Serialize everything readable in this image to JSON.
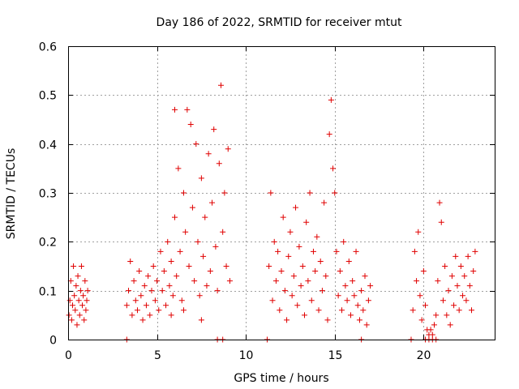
{
  "chart_data": {
    "type": "scatter",
    "title": "Day 186 of 2022, SRMTID for receiver mtut",
    "xlabel": "GPS time / hours",
    "ylabel": "SRMTID / TECUs",
    "xlim": [
      0,
      24
    ],
    "ylim": [
      0,
      0.6
    ],
    "xticks": [
      0,
      5,
      10,
      15,
      20
    ],
    "xtick_labels": [
      "0",
      "5",
      "10",
      "15",
      "20"
    ],
    "yticks": [
      0,
      0.1,
      0.2,
      0.3,
      0.4,
      0.5,
      0.6
    ],
    "ytick_labels": [
      "0",
      "0.1",
      "0.2",
      "0.3",
      "0.4",
      "0.5",
      "0.6"
    ],
    "grid": true,
    "marker": "+",
    "color": "#e00000",
    "series": [
      {
        "name": "SRMTID",
        "points": [
          [
            0.05,
            0.05
          ],
          [
            0.1,
            0.08
          ],
          [
            0.15,
            0.12
          ],
          [
            0.2,
            0.04
          ],
          [
            0.25,
            0.07
          ],
          [
            0.3,
            0.15
          ],
          [
            0.35,
            0.09
          ],
          [
            0.4,
            0.06
          ],
          [
            0.45,
            0.11
          ],
          [
            0.5,
            0.03
          ],
          [
            0.55,
            0.13
          ],
          [
            0.6,
            0.08
          ],
          [
            0.65,
            0.05
          ],
          [
            0.7,
            0.1
          ],
          [
            0.75,
            0.15
          ],
          [
            0.8,
            0.07
          ],
          [
            0.85,
            0.09
          ],
          [
            0.9,
            0.04
          ],
          [
            0.95,
            0.12
          ],
          [
            1.0,
            0.06
          ],
          [
            1.05,
            0.08
          ],
          [
            1.1,
            0.1
          ],
          [
            3.3,
            0.0
          ],
          [
            3.3,
            0.07
          ],
          [
            3.4,
            0.1
          ],
          [
            3.5,
            0.16
          ],
          [
            3.6,
            0.05
          ],
          [
            3.7,
            0.12
          ],
          [
            3.8,
            0.08
          ],
          [
            3.9,
            0.06
          ],
          [
            4.0,
            0.14
          ],
          [
            4.1,
            0.09
          ],
          [
            4.2,
            0.04
          ],
          [
            4.3,
            0.11
          ],
          [
            4.4,
            0.07
          ],
          [
            4.5,
            0.13
          ],
          [
            4.6,
            0.05
          ],
          [
            4.7,
            0.1
          ],
          [
            4.8,
            0.15
          ],
          [
            4.9,
            0.08
          ],
          [
            5.0,
            0.12
          ],
          [
            5.1,
            0.06
          ],
          [
            5.2,
            0.18
          ],
          [
            5.3,
            0.1
          ],
          [
            5.4,
            0.14
          ],
          [
            5.5,
            0.07
          ],
          [
            5.6,
            0.2
          ],
          [
            5.7,
            0.11
          ],
          [
            5.8,
            0.16
          ],
          [
            5.9,
            0.09
          ],
          [
            6.0,
            0.25
          ],
          [
            6.1,
            0.13
          ],
          [
            6.2,
            0.35
          ],
          [
            6.3,
            0.18
          ],
          [
            6.4,
            0.08
          ],
          [
            6.5,
            0.3
          ],
          [
            6.6,
            0.22
          ],
          [
            6.7,
            0.47
          ],
          [
            6.8,
            0.15
          ],
          [
            6.9,
            0.44
          ],
          [
            7.0,
            0.27
          ],
          [
            7.1,
            0.12
          ],
          [
            7.2,
            0.4
          ],
          [
            7.3,
            0.2
          ],
          [
            7.4,
            0.09
          ],
          [
            7.5,
            0.33
          ],
          [
            7.6,
            0.17
          ],
          [
            7.7,
            0.25
          ],
          [
            7.8,
            0.11
          ],
          [
            7.9,
            0.38
          ],
          [
            8.0,
            0.14
          ],
          [
            8.1,
            0.28
          ],
          [
            8.2,
            0.43
          ],
          [
            8.3,
            0.19
          ],
          [
            8.4,
            0.1
          ],
          [
            8.5,
            0.36
          ],
          [
            8.6,
            0.52
          ],
          [
            8.7,
            0.22
          ],
          [
            8.8,
            0.3
          ],
          [
            8.9,
            0.15
          ],
          [
            9.0,
            0.39
          ],
          [
            9.1,
            0.12
          ],
          [
            6.0,
            0.47
          ],
          [
            5.8,
            0.05
          ],
          [
            6.5,
            0.06
          ],
          [
            7.5,
            0.04
          ],
          [
            8.4,
            0.0
          ],
          [
            8.7,
            0.0
          ],
          [
            11.2,
            0.0
          ],
          [
            11.3,
            0.15
          ],
          [
            11.4,
            0.3
          ],
          [
            11.5,
            0.08
          ],
          [
            11.6,
            0.2
          ],
          [
            11.7,
            0.12
          ],
          [
            11.8,
            0.18
          ],
          [
            11.9,
            0.06
          ],
          [
            12.0,
            0.14
          ],
          [
            12.1,
            0.25
          ],
          [
            12.2,
            0.1
          ],
          [
            12.3,
            0.04
          ],
          [
            12.4,
            0.17
          ],
          [
            12.5,
            0.22
          ],
          [
            12.6,
            0.09
          ],
          [
            12.7,
            0.13
          ],
          [
            12.8,
            0.27
          ],
          [
            12.9,
            0.07
          ],
          [
            13.0,
            0.19
          ],
          [
            13.1,
            0.11
          ],
          [
            13.2,
            0.15
          ],
          [
            13.3,
            0.05
          ],
          [
            13.4,
            0.24
          ],
          [
            13.5,
            0.12
          ],
          [
            13.6,
            0.3
          ],
          [
            13.7,
            0.08
          ],
          [
            13.8,
            0.18
          ],
          [
            13.9,
            0.14
          ],
          [
            14.0,
            0.21
          ],
          [
            14.1,
            0.06
          ],
          [
            14.2,
            0.16
          ],
          [
            14.3,
            0.1
          ],
          [
            14.4,
            0.28
          ],
          [
            14.5,
            0.13
          ],
          [
            14.6,
            0.04
          ],
          [
            14.7,
            0.42
          ],
          [
            14.8,
            0.49
          ],
          [
            14.9,
            0.35
          ],
          [
            15.0,
            0.3
          ],
          [
            15.1,
            0.18
          ],
          [
            15.2,
            0.09
          ],
          [
            15.3,
            0.14
          ],
          [
            15.4,
            0.06
          ],
          [
            15.5,
            0.2
          ],
          [
            15.6,
            0.11
          ],
          [
            15.7,
            0.08
          ],
          [
            15.8,
            0.16
          ],
          [
            15.9,
            0.05
          ],
          [
            16.0,
            0.12
          ],
          [
            16.1,
            0.09
          ],
          [
            16.2,
            0.18
          ],
          [
            16.3,
            0.07
          ],
          [
            16.4,
            0.04
          ],
          [
            16.5,
            0.1
          ],
          [
            16.6,
            0.06
          ],
          [
            16.7,
            0.13
          ],
          [
            16.8,
            0.03
          ],
          [
            16.9,
            0.08
          ],
          [
            17.0,
            0.11
          ],
          [
            16.5,
            0.0
          ],
          [
            19.3,
            0.0
          ],
          [
            19.4,
            0.06
          ],
          [
            19.5,
            0.18
          ],
          [
            19.6,
            0.12
          ],
          [
            19.7,
            0.22
          ],
          [
            19.8,
            0.09
          ],
          [
            19.9,
            0.04
          ],
          [
            20.0,
            0.14
          ],
          [
            20.1,
            0.07
          ],
          [
            20.2,
            0.02
          ],
          [
            20.3,
            0.01
          ],
          [
            20.4,
            0.02
          ],
          [
            20.5,
            0.01
          ],
          [
            20.6,
            0.03
          ],
          [
            20.7,
            0.05
          ],
          [
            20.8,
            0.12
          ],
          [
            20.9,
            0.28
          ],
          [
            21.0,
            0.24
          ],
          [
            21.1,
            0.08
          ],
          [
            21.2,
            0.15
          ],
          [
            21.3,
            0.05
          ],
          [
            21.4,
            0.1
          ],
          [
            21.5,
            0.03
          ],
          [
            21.6,
            0.13
          ],
          [
            21.7,
            0.07
          ],
          [
            21.8,
            0.17
          ],
          [
            21.9,
            0.11
          ],
          [
            22.0,
            0.06
          ],
          [
            22.1,
            0.15
          ],
          [
            22.2,
            0.09
          ],
          [
            22.3,
            0.13
          ],
          [
            22.4,
            0.08
          ],
          [
            22.5,
            0.17
          ],
          [
            22.6,
            0.11
          ],
          [
            22.7,
            0.06
          ],
          [
            22.8,
            0.14
          ],
          [
            22.9,
            0.18
          ],
          [
            20.1,
            0.0
          ],
          [
            20.3,
            0.0
          ],
          [
            20.5,
            0.0
          ],
          [
            20.7,
            0.0
          ]
        ]
      }
    ]
  }
}
